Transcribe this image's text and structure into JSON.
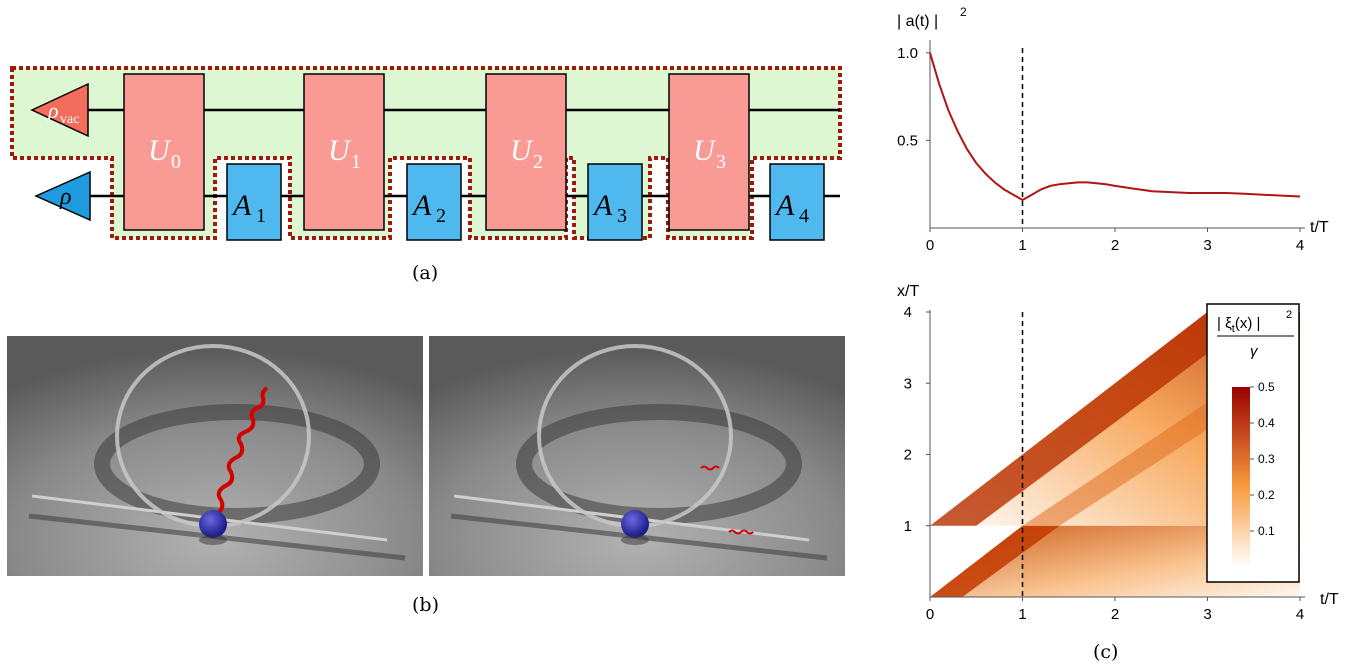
{
  "panel_a": {
    "caption": "(a)",
    "state_vac": {
      "base": "ρ",
      "sub": "vac"
    },
    "state": "ρ",
    "unitaries": [
      {
        "base": "U",
        "sub": "0"
      },
      {
        "base": "U",
        "sub": "1"
      },
      {
        "base": "U",
        "sub": "2"
      },
      {
        "base": "U",
        "sub": "3"
      }
    ],
    "ancillas": [
      {
        "base": "A",
        "sub": "1"
      },
      {
        "base": "A",
        "sub": "2"
      },
      {
        "base": "A",
        "sub": "3"
      },
      {
        "base": "A",
        "sub": "4"
      }
    ],
    "colors": {
      "vac": "#f26d5b",
      "rho": "#1f9be0",
      "unitary": "#f99a95",
      "ancilla": "#4fb8ee",
      "region_fill": "#dcf7d2",
      "region_border": "#a01a0a"
    }
  },
  "panel_b": {
    "caption": "(b)",
    "images": [
      "photon-emission-render",
      "photon-in-waveguide-render"
    ]
  },
  "panel_c": {
    "caption": "(c)",
    "top_chart": {
      "ylabel": "| a(t) |",
      "ylabel_sup": "2",
      "xlabel": "t/T",
      "x_ticks": [
        "0",
        "1",
        "2",
        "3",
        "4"
      ],
      "y_ticks": [
        "0.5",
        "1.0"
      ]
    },
    "bottom_chart": {
      "ylabel": "x/T",
      "xlabel": "t/T",
      "x_ticks": [
        "0",
        "1",
        "2",
        "3",
        "4"
      ],
      "y_ticks": [
        "1",
        "2",
        "3",
        "4"
      ],
      "legend_title": "| ξ",
      "legend_title_sub": "t",
      "legend_title_rest": "(x) |",
      "legend_title_sup": "2",
      "legend_denominator": "γ",
      "legend_ticks": [
        "0.5",
        "0.4",
        "0.3",
        "0.2",
        "0.1"
      ]
    }
  },
  "chart_data": [
    {
      "type": "line",
      "xlabel": "t/T",
      "ylabel": "| a(t) |^2",
      "xlim": [
        0,
        4
      ],
      "ylim": [
        0,
        1.05
      ],
      "x": [
        0,
        0.1,
        0.2,
        0.3,
        0.4,
        0.5,
        0.6,
        0.7,
        0.8,
        0.9,
        1.0,
        1.1,
        1.2,
        1.3,
        1.4,
        1.5,
        1.6,
        1.7,
        1.8,
        1.9,
        2.0,
        2.2,
        2.4,
        2.6,
        2.8,
        3.0,
        3.2,
        3.4,
        3.6,
        3.8,
        4.0
      ],
      "y": [
        1.0,
        0.82,
        0.67,
        0.55,
        0.45,
        0.37,
        0.31,
        0.26,
        0.22,
        0.19,
        0.16,
        0.19,
        0.22,
        0.24,
        0.25,
        0.255,
        0.26,
        0.26,
        0.255,
        0.25,
        0.24,
        0.225,
        0.21,
        0.205,
        0.2,
        0.2,
        0.2,
        0.195,
        0.19,
        0.185,
        0.18
      ],
      "annotations": [
        {
          "type": "vline",
          "x": 1,
          "style": "dashed"
        }
      ]
    },
    {
      "type": "heatmap",
      "xlabel": "t/T",
      "ylabel": "x/T",
      "xlim": [
        0,
        4
      ],
      "ylim": [
        0,
        4
      ],
      "colorbar_range": [
        0,
        0.5
      ],
      "colorbar_ticks": [
        0.1,
        0.2,
        0.3,
        0.4,
        0.5
      ],
      "annotations": [
        {
          "type": "vline",
          "x": 1,
          "style": "dashed"
        }
      ]
    }
  ]
}
